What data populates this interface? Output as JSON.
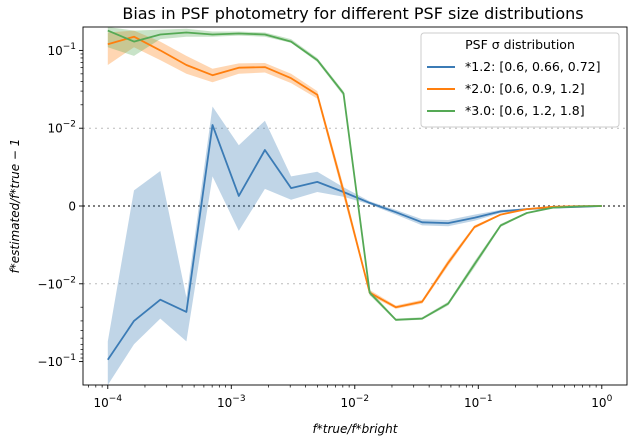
{
  "chart_data": {
    "type": "line",
    "title": "Bias in PSF photometry for different PSF size distributions",
    "xlabel": "f*true/f*bright",
    "ylabel": "f*estimated/f*true − 1",
    "xscale": "log",
    "yscale": "symlog",
    "symlog_linthresh": 0.01,
    "xlim": [
      6.3e-05,
      1.6
    ],
    "ylim": [
      -0.2,
      0.2
    ],
    "x_ticks": [
      {
        "value": 0.0001,
        "base": "10",
        "exp": "−4"
      },
      {
        "value": 0.001,
        "base": "10",
        "exp": "−3"
      },
      {
        "value": 0.01,
        "base": "10",
        "exp": "−2"
      },
      {
        "value": 0.1,
        "base": "10",
        "exp": "−1"
      },
      {
        "value": 1,
        "base": "10",
        "exp": "0"
      }
    ],
    "y_ticks": [
      {
        "value": -0.1,
        "base": "−10",
        "exp": "−1"
      },
      {
        "value": -0.01,
        "base": "−10",
        "exp": "−2"
      },
      {
        "value": 0,
        "base": "0",
        "exp": ""
      },
      {
        "value": 0.01,
        "base": "10",
        "exp": "−2"
      },
      {
        "value": 0.1,
        "base": "10",
        "exp": "−1"
      }
    ],
    "reference_lines": [
      -0.01,
      0,
      0.01
    ],
    "legend": {
      "title": "PSF σ distribution",
      "placement": "top-right"
    },
    "series": [
      {
        "name": "*1.2: [0.6, 0.66, 0.72]",
        "color": "#3b7bb5",
        "x": [
          0.0001,
          0.000163,
          0.000266,
          0.000433,
          0.000705,
          0.00115,
          0.00187,
          0.00305,
          0.00497,
          0.0081,
          0.0132,
          0.0215,
          0.0351,
          0.0571,
          0.0931,
          0.152,
          0.247,
          0.403,
          0.657,
          1.0
        ],
        "y": [
          -0.095,
          -0.03,
          -0.016,
          -0.023,
          0.011,
          0.0013,
          0.0072,
          0.0023,
          0.0031,
          0.0018,
          0.0004,
          -0.0008,
          -0.0021,
          -0.0022,
          -0.0015,
          -0.0007,
          -0.0004,
          -0.0002,
          -0.0001,
          0.0
        ],
        "lower": [
          -0.2,
          -0.06,
          -0.028,
          -0.055,
          0.0038,
          -0.0032,
          0.0022,
          0.0008,
          0.0018,
          0.0012,
          0.0002,
          -0.0011,
          -0.0025,
          -0.0026,
          -0.0019,
          -0.0009,
          -0.0005,
          -0.00025,
          -0.00012,
          -2e-05
        ],
        "upper": [
          -0.055,
          0.002,
          0.0045,
          -0.015,
          0.019,
          0.0078,
          0.0125,
          0.0038,
          0.0044,
          0.0024,
          0.0006,
          -0.0005,
          -0.0017,
          -0.0018,
          -0.0011,
          -0.0005,
          -0.0003,
          -0.00015,
          -8e-05,
          2e-05
        ]
      },
      {
        "name": "*2.0: [0.6, 0.9, 1.2]",
        "color": "#ff7f0e",
        "x": [
          0.0001,
          0.000163,
          0.000266,
          0.000433,
          0.000705,
          0.00115,
          0.00187,
          0.00305,
          0.00497,
          0.0081,
          0.0132,
          0.0215,
          0.0351,
          0.0571,
          0.0931,
          0.152,
          0.247,
          0.403,
          0.657,
          1.0
        ],
        "y": [
          0.12,
          0.15,
          0.1,
          0.065,
          0.048,
          0.06,
          0.061,
          0.044,
          0.027,
          0.0019,
          -0.013,
          -0.02,
          -0.017,
          -0.0073,
          -0.0027,
          -0.0011,
          -0.0004,
          -0.0001,
          -3e-05,
          0.0
        ],
        "lower": [
          0.065,
          0.11,
          0.075,
          0.05,
          0.039,
          0.05,
          0.052,
          0.038,
          0.024,
          0.0012,
          -0.014,
          -0.021,
          -0.018,
          -0.0077,
          -0.0029,
          -0.0012,
          -0.00045,
          -0.00012,
          -4e-05,
          -1e-05
        ],
        "upper": [
          0.17,
          0.18,
          0.13,
          0.085,
          0.058,
          0.068,
          0.069,
          0.05,
          0.03,
          0.0026,
          -0.012,
          -0.019,
          -0.016,
          -0.0069,
          -0.0025,
          -0.001,
          -0.00035,
          -8e-05,
          -2e-05,
          1e-05
        ]
      },
      {
        "name": "*3.0: [0.6, 1.2, 1.8]",
        "color": "#55a955",
        "x": [
          0.0001,
          0.000163,
          0.000266,
          0.000433,
          0.000705,
          0.00115,
          0.00187,
          0.00305,
          0.00497,
          0.0081,
          0.0132,
          0.0215,
          0.0351,
          0.0571,
          0.0931,
          0.152,
          0.247,
          0.403,
          0.657,
          1.0
        ],
        "y": [
          0.18,
          0.13,
          0.16,
          0.17,
          0.16,
          0.165,
          0.16,
          0.13,
          0.075,
          0.028,
          -0.013,
          -0.029,
          -0.028,
          -0.018,
          -0.0075,
          -0.0025,
          -0.0009,
          -0.0002,
          -5e-05,
          0.0
        ],
        "lower": [
          0.11,
          0.085,
          0.14,
          0.15,
          0.15,
          0.155,
          0.15,
          0.125,
          0.071,
          0.026,
          -0.014,
          -0.03,
          -0.029,
          -0.019,
          -0.0079,
          -0.0027,
          -0.001,
          -0.00025,
          -7e-05,
          -1e-05
        ],
        "upper": [
          0.2,
          0.18,
          0.185,
          0.19,
          0.175,
          0.175,
          0.17,
          0.14,
          0.08,
          0.03,
          -0.012,
          -0.028,
          -0.027,
          -0.017,
          -0.0071,
          -0.0023,
          -0.0008,
          -0.00015,
          -3e-05,
          1e-05
        ]
      }
    ]
  }
}
